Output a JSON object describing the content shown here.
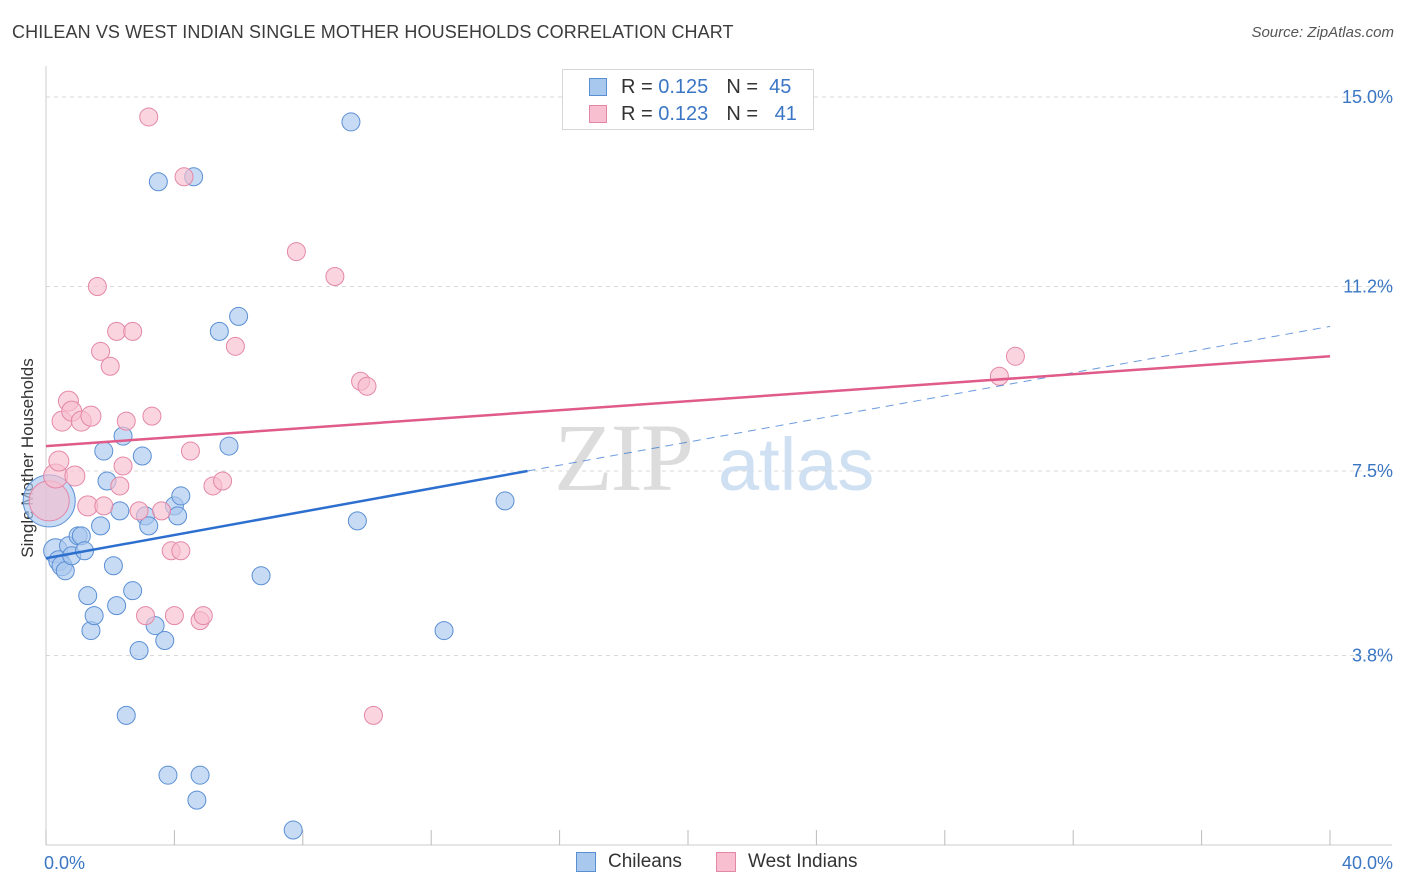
{
  "title": "CHILEAN VS WEST INDIAN SINGLE MOTHER HOUSEHOLDS CORRELATION CHART",
  "source": "Source: ZipAtlas.com",
  "watermark": {
    "zip": "ZIP",
    "atlas": "atlas"
  },
  "legend": {
    "rows": [
      {
        "r_label": "R =",
        "r_value": "0.125",
        "n_label": "N =",
        "n_value": "45",
        "fill": "#a9c8ee",
        "stroke": "#5b8fd4"
      },
      {
        "r_label": "R =",
        "r_value": "0.123",
        "n_label": "N =",
        "n_value": "41",
        "fill": "#f7bfd0",
        "stroke": "#e487a7"
      }
    ]
  },
  "bottom_legend": [
    {
      "label": "Chileans",
      "fill": "#a9c8ee",
      "stroke": "#5b8fd4"
    },
    {
      "label": "West Indians",
      "fill": "#f7bfd0",
      "stroke": "#e487a7"
    }
  ],
  "chart_data": {
    "type": "scatter",
    "title": "CHILEAN VS WEST INDIAN SINGLE MOTHER HOUSEHOLDS CORRELATION CHART",
    "xlabel": "",
    "ylabel": "Single Mother Households",
    "xlim": [
      0,
      40
    ],
    "ylim": [
      0,
      15.5
    ],
    "x_tick_labels": [
      "0.0%",
      "40.0%"
    ],
    "y_ticks": [
      3.8,
      7.5,
      11.2,
      15.0
    ],
    "y_tick_labels": [
      "3.8%",
      "7.5%",
      "11.2%",
      "15.0%"
    ],
    "grid": true,
    "series": [
      {
        "name": "Chileans",
        "color": "#5b8fd4",
        "fill": "#a9c8ee",
        "trend": {
          "x": [
            0,
            15
          ],
          "y": [
            5.75,
            7.5
          ],
          "color": "#2c6fce",
          "dashed_extension_to": [
            40,
            10.4
          ]
        },
        "points": [
          [
            0.1,
            6.9,
            26
          ],
          [
            0.3,
            5.9,
            12
          ],
          [
            0.4,
            5.7,
            10
          ],
          [
            0.5,
            5.6,
            10
          ],
          [
            0.6,
            5.5,
            9
          ],
          [
            0.7,
            6.0,
            9
          ],
          [
            0.8,
            5.8,
            9
          ],
          [
            1.0,
            6.2,
            9
          ],
          [
            1.1,
            6.2,
            9
          ],
          [
            1.2,
            5.9,
            9
          ],
          [
            1.3,
            5.0,
            9
          ],
          [
            1.4,
            4.3,
            9
          ],
          [
            1.5,
            4.6,
            9
          ],
          [
            1.7,
            6.4,
            9
          ],
          [
            1.8,
            7.9,
            9
          ],
          [
            1.9,
            7.3,
            9
          ],
          [
            2.1,
            5.6,
            9
          ],
          [
            2.2,
            4.8,
            9
          ],
          [
            2.3,
            6.7,
            9
          ],
          [
            2.4,
            8.2,
            9
          ],
          [
            2.5,
            2.6,
            9
          ],
          [
            2.7,
            5.1,
            9
          ],
          [
            2.9,
            3.9,
            9
          ],
          [
            3.0,
            7.8,
            9
          ],
          [
            3.1,
            6.6,
            9
          ],
          [
            3.2,
            6.4,
            9
          ],
          [
            3.4,
            4.4,
            9
          ],
          [
            3.5,
            13.3,
            9
          ],
          [
            3.7,
            4.1,
            9
          ],
          [
            3.8,
            1.4,
            9
          ],
          [
            4.0,
            6.8,
            9
          ],
          [
            4.1,
            6.6,
            9
          ],
          [
            4.2,
            7.0,
            9
          ],
          [
            4.6,
            13.4,
            9
          ],
          [
            4.7,
            0.9,
            9
          ],
          [
            4.8,
            1.4,
            9
          ],
          [
            5.4,
            10.3,
            9
          ],
          [
            5.7,
            8.0,
            9
          ],
          [
            6.0,
            10.6,
            9
          ],
          [
            6.7,
            5.4,
            9
          ],
          [
            7.7,
            0.3,
            9
          ],
          [
            9.5,
            14.5,
            9
          ],
          [
            9.7,
            6.5,
            9
          ],
          [
            12.4,
            4.3,
            9
          ],
          [
            14.3,
            6.9,
            9
          ]
        ]
      },
      {
        "name": "West Indians",
        "color": "#e487a7",
        "fill": "#f7bfd0",
        "trend": {
          "x": [
            0,
            40
          ],
          "y": [
            8.0,
            9.8
          ],
          "color": "#e05a8a"
        },
        "points": [
          [
            0.1,
            6.9,
            20
          ],
          [
            0.3,
            7.4,
            12
          ],
          [
            0.4,
            7.7,
            10
          ],
          [
            0.5,
            8.5,
            10
          ],
          [
            0.7,
            8.9,
            10
          ],
          [
            0.8,
            8.7,
            10
          ],
          [
            0.9,
            7.4,
            10
          ],
          [
            1.1,
            8.5,
            10
          ],
          [
            1.3,
            6.8,
            10
          ],
          [
            1.4,
            8.6,
            10
          ],
          [
            1.6,
            11.2,
            9
          ],
          [
            1.7,
            9.9,
            9
          ],
          [
            1.8,
            6.8,
            9
          ],
          [
            2.0,
            9.6,
            9
          ],
          [
            2.2,
            10.3,
            9
          ],
          [
            2.3,
            7.2,
            9
          ],
          [
            2.4,
            7.6,
            9
          ],
          [
            2.5,
            8.5,
            9
          ],
          [
            2.7,
            10.3,
            9
          ],
          [
            2.9,
            6.7,
            9
          ],
          [
            3.1,
            4.6,
            9
          ],
          [
            3.2,
            14.6,
            9
          ],
          [
            3.3,
            8.6,
            9
          ],
          [
            3.6,
            6.7,
            9
          ],
          [
            3.9,
            5.9,
            9
          ],
          [
            4.0,
            4.6,
            9
          ],
          [
            4.2,
            5.9,
            9
          ],
          [
            4.3,
            13.4,
            9
          ],
          [
            4.5,
            7.9,
            9
          ],
          [
            4.8,
            4.5,
            9
          ],
          [
            4.9,
            4.6,
            9
          ],
          [
            5.2,
            7.2,
            9
          ],
          [
            5.5,
            7.3,
            9
          ],
          [
            5.9,
            10.0,
            9
          ],
          [
            7.8,
            11.9,
            9
          ],
          [
            9.0,
            11.4,
            9
          ],
          [
            9.8,
            9.3,
            9
          ],
          [
            10.0,
            9.2,
            9
          ],
          [
            10.2,
            2.6,
            9
          ],
          [
            29.7,
            9.4,
            9
          ],
          [
            30.2,
            9.8,
            9
          ]
        ]
      }
    ]
  }
}
